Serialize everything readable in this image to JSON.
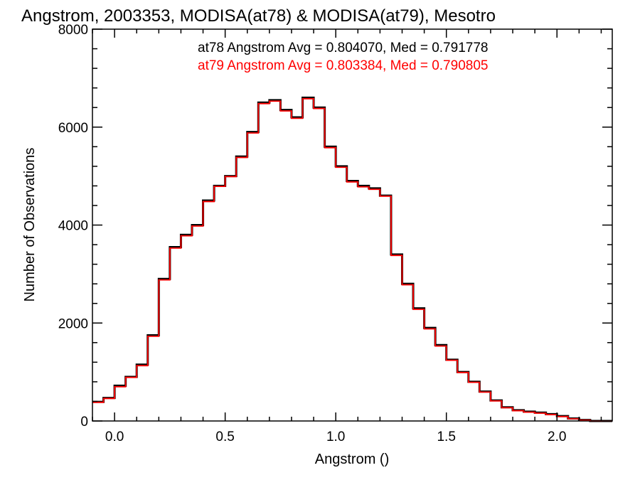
{
  "chart_data": {
    "type": "line",
    "title": "Angstrom, 2003353, MODISA(at78) & MODISA(at79), Mesotro",
    "xlabel": "Angstrom ()",
    "ylabel": "Number of Observations",
    "xlim": [
      -0.1,
      2.25
    ],
    "ylim": [
      0,
      8000
    ],
    "xticks": [
      {
        "value": 0.0,
        "label": "0.0"
      },
      {
        "value": 0.5,
        "label": "0.5"
      },
      {
        "value": 1.0,
        "label": "1.0"
      },
      {
        "value": 1.5,
        "label": "1.5"
      },
      {
        "value": 2.0,
        "label": "2.0"
      }
    ],
    "yticks": [
      {
        "value": 0,
        "label": "0"
      },
      {
        "value": 2000,
        "label": "2000"
      },
      {
        "value": 4000,
        "label": "4000"
      },
      {
        "value": 6000,
        "label": "6000"
      },
      {
        "value": 8000,
        "label": "8000"
      }
    ],
    "grid": false,
    "x": [
      -0.1,
      -0.05,
      0.0,
      0.05,
      0.1,
      0.15,
      0.2,
      0.25,
      0.3,
      0.35,
      0.4,
      0.45,
      0.5,
      0.55,
      0.6,
      0.65,
      0.7,
      0.75,
      0.8,
      0.85,
      0.9,
      0.95,
      1.0,
      1.05,
      1.1,
      1.15,
      1.2,
      1.25,
      1.3,
      1.35,
      1.4,
      1.45,
      1.5,
      1.55,
      1.6,
      1.65,
      1.7,
      1.75,
      1.8,
      1.85,
      1.9,
      1.95,
      2.0,
      2.05,
      2.1,
      2.15,
      2.2,
      2.25
    ],
    "series": [
      {
        "name": "at78",
        "color": "#000000",
        "values": [
          390,
          470,
          720,
          900,
          1150,
          1750,
          2900,
          3550,
          3800,
          4000,
          4500,
          4800,
          5000,
          5400,
          5900,
          6500,
          6550,
          6350,
          6200,
          6600,
          6400,
          5600,
          5200,
          4900,
          4800,
          4750,
          4600,
          3400,
          2800,
          2300,
          1900,
          1550,
          1250,
          1000,
          800,
          600,
          420,
          280,
          220,
          190,
          170,
          140,
          100,
          50,
          20,
          0,
          0,
          0
        ],
        "annotation": "at78 Angstrom Avg = 0.804070, Med = 0.791778"
      },
      {
        "name": "at79",
        "color": "#ff0000",
        "values": [
          380,
          460,
          700,
          890,
          1130,
          1730,
          2880,
          3530,
          3780,
          3980,
          4480,
          4790,
          4990,
          5380,
          5880,
          6480,
          6530,
          6330,
          6180,
          6580,
          6380,
          5580,
          5180,
          4880,
          4780,
          4730,
          4590,
          3380,
          2780,
          2280,
          1880,
          1530,
          1240,
          990,
          790,
          590,
          410,
          270,
          210,
          180,
          160,
          130,
          90,
          45,
          15,
          0,
          0,
          0
        ],
        "annotation": "at79 Angstrom Avg = 0.803384, Med = 0.790805"
      }
    ]
  }
}
